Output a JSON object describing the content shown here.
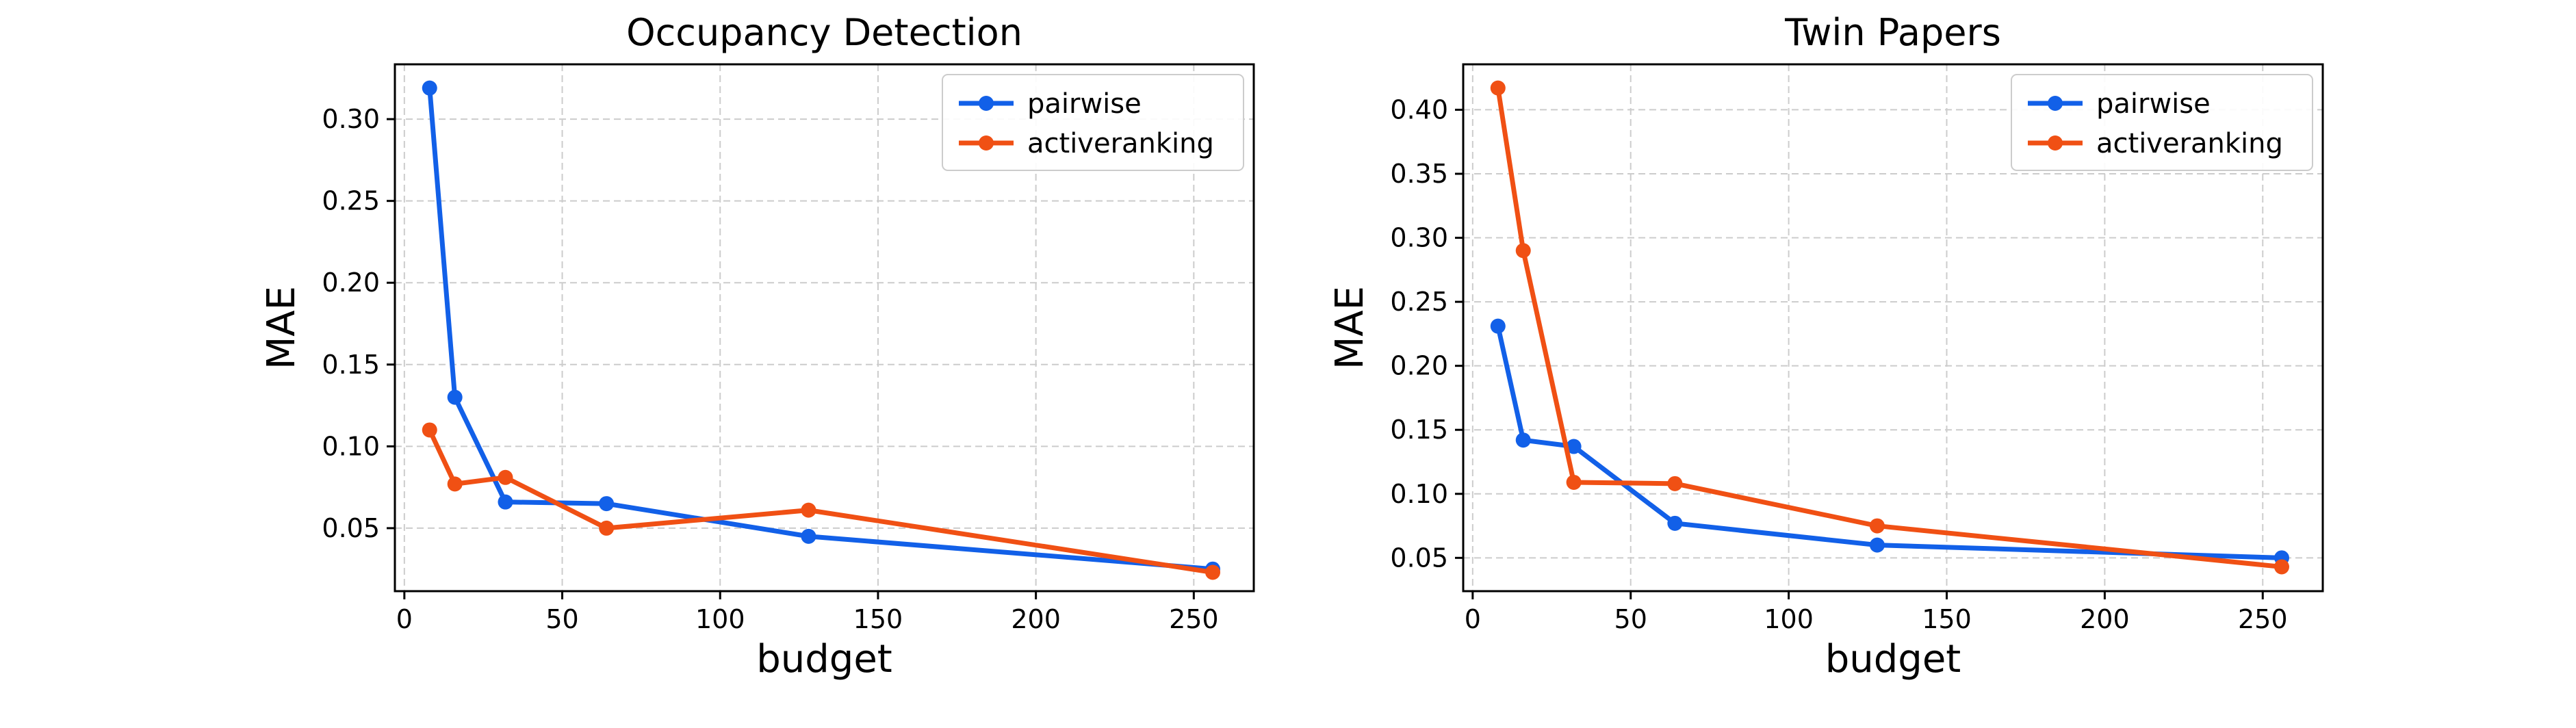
{
  "chart_data": [
    {
      "type": "line",
      "title": "Occupancy Detection",
      "xlabel": "budget",
      "ylabel": "MAE",
      "xlim": [
        -3,
        269
      ],
      "ylim": [
        0.0115,
        0.3335
      ],
      "xticks": [
        0,
        50,
        100,
        150,
        200,
        250
      ],
      "xtick_labels": [
        "0",
        "50",
        "100",
        "150",
        "200",
        "250"
      ],
      "yticks": [
        0.05,
        0.1,
        0.15,
        0.2,
        0.25,
        0.3
      ],
      "ytick_labels": [
        "0.05",
        "0.10",
        "0.15",
        "0.20",
        "0.25",
        "0.30"
      ],
      "grid": true,
      "legend_position": "top-right",
      "series": [
        {
          "name": "pairwise",
          "color": "#1260e8",
          "x": [
            8,
            16,
            32,
            64,
            128,
            256
          ],
          "y": [
            0.319,
            0.13,
            0.066,
            0.065,
            0.045,
            0.025
          ]
        },
        {
          "name": "activeranking",
          "color": "#f05014",
          "x": [
            8,
            16,
            32,
            64,
            128,
            256
          ],
          "y": [
            0.11,
            0.077,
            0.081,
            0.05,
            0.061,
            0.023
          ]
        }
      ]
    },
    {
      "type": "line",
      "title": "Twin Papers",
      "xlabel": "budget",
      "ylabel": "MAE",
      "xlim": [
        -3,
        269
      ],
      "ylim": [
        0.024,
        0.4355
      ],
      "xticks": [
        0,
        50,
        100,
        150,
        200,
        250
      ],
      "xtick_labels": [
        "0",
        "50",
        "100",
        "150",
        "200",
        "250"
      ],
      "yticks": [
        0.05,
        0.1,
        0.15,
        0.2,
        0.25,
        0.3,
        0.35,
        0.4
      ],
      "ytick_labels": [
        "0.05",
        "0.10",
        "0.15",
        "0.20",
        "0.25",
        "0.30",
        "0.35",
        "0.40"
      ],
      "grid": true,
      "legend_position": "top-right",
      "series": [
        {
          "name": "pairwise",
          "color": "#1260e8",
          "x": [
            8,
            16,
            32,
            64,
            128,
            256
          ],
          "y": [
            0.231,
            0.142,
            0.137,
            0.077,
            0.06,
            0.05
          ]
        },
        {
          "name": "activeranking",
          "color": "#f05014",
          "x": [
            8,
            16,
            32,
            64,
            128,
            256
          ],
          "y": [
            0.417,
            0.29,
            0.109,
            0.108,
            0.075,
            0.043
          ]
        }
      ]
    }
  ]
}
